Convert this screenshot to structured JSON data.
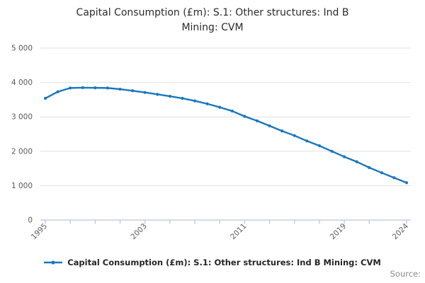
{
  "title": {
    "line1": "Capital Consumption (£m): S.1: Other structures: Ind B",
    "line2": "Mining: CVM"
  },
  "legend": {
    "label": "Capital Consumption (£m): S.1: Other structures: Ind B Mining: CVM",
    "marker": "line-with-dot"
  },
  "footer": {
    "source_label": "Source:"
  },
  "colors": {
    "line": "#1878be",
    "grid": "#e0e0e0",
    "axis": "#b9c3dc",
    "tick_label": "#5a5a5a",
    "title_text": "#2b2b2b",
    "legend_text": "#262626",
    "source_text": "#8a8a8a"
  },
  "chart_data": {
    "type": "line",
    "title": "Capital Consumption (£m): S.1: Other structures: Ind B Mining: CVM",
    "xlabel": "",
    "ylabel": "",
    "x": [
      1995,
      1996,
      1997,
      1998,
      1999,
      2000,
      2001,
      2002,
      2003,
      2004,
      2005,
      2006,
      2007,
      2008,
      2009,
      2010,
      2011,
      2012,
      2013,
      2014,
      2015,
      2016,
      2017,
      2018,
      2019,
      2020,
      2021,
      2022,
      2023,
      2024
    ],
    "series": [
      {
        "name": "Capital Consumption (£m): S.1: Other structures: Ind B Mining: CVM",
        "values": [
          3540,
          3730,
          3840,
          3850,
          3845,
          3840,
          3805,
          3760,
          3710,
          3655,
          3600,
          3540,
          3465,
          3380,
          3280,
          3170,
          3015,
          2885,
          2740,
          2590,
          2455,
          2300,
          2160,
          2000,
          1840,
          1695,
          1525,
          1375,
          1230,
          1085
        ]
      }
    ],
    "ylim": [
      0,
      5000
    ],
    "yticks": [
      0,
      1000,
      2000,
      3000,
      4000,
      5000
    ],
    "ytick_labels": [
      "0",
      "1 000",
      "2 000",
      "3 000",
      "4 000",
      "5 000"
    ],
    "xticks_labeled": [
      1995,
      2003,
      2011,
      2019,
      2024
    ],
    "xticks_minor": [
      1995,
      1997,
      1999,
      2001,
      2003,
      2005,
      2007,
      2009,
      2011,
      2013,
      2015,
      2017,
      2019,
      2021,
      2024
    ],
    "grid": "horizontal",
    "legend_position": "bottom",
    "marker": "dot"
  }
}
